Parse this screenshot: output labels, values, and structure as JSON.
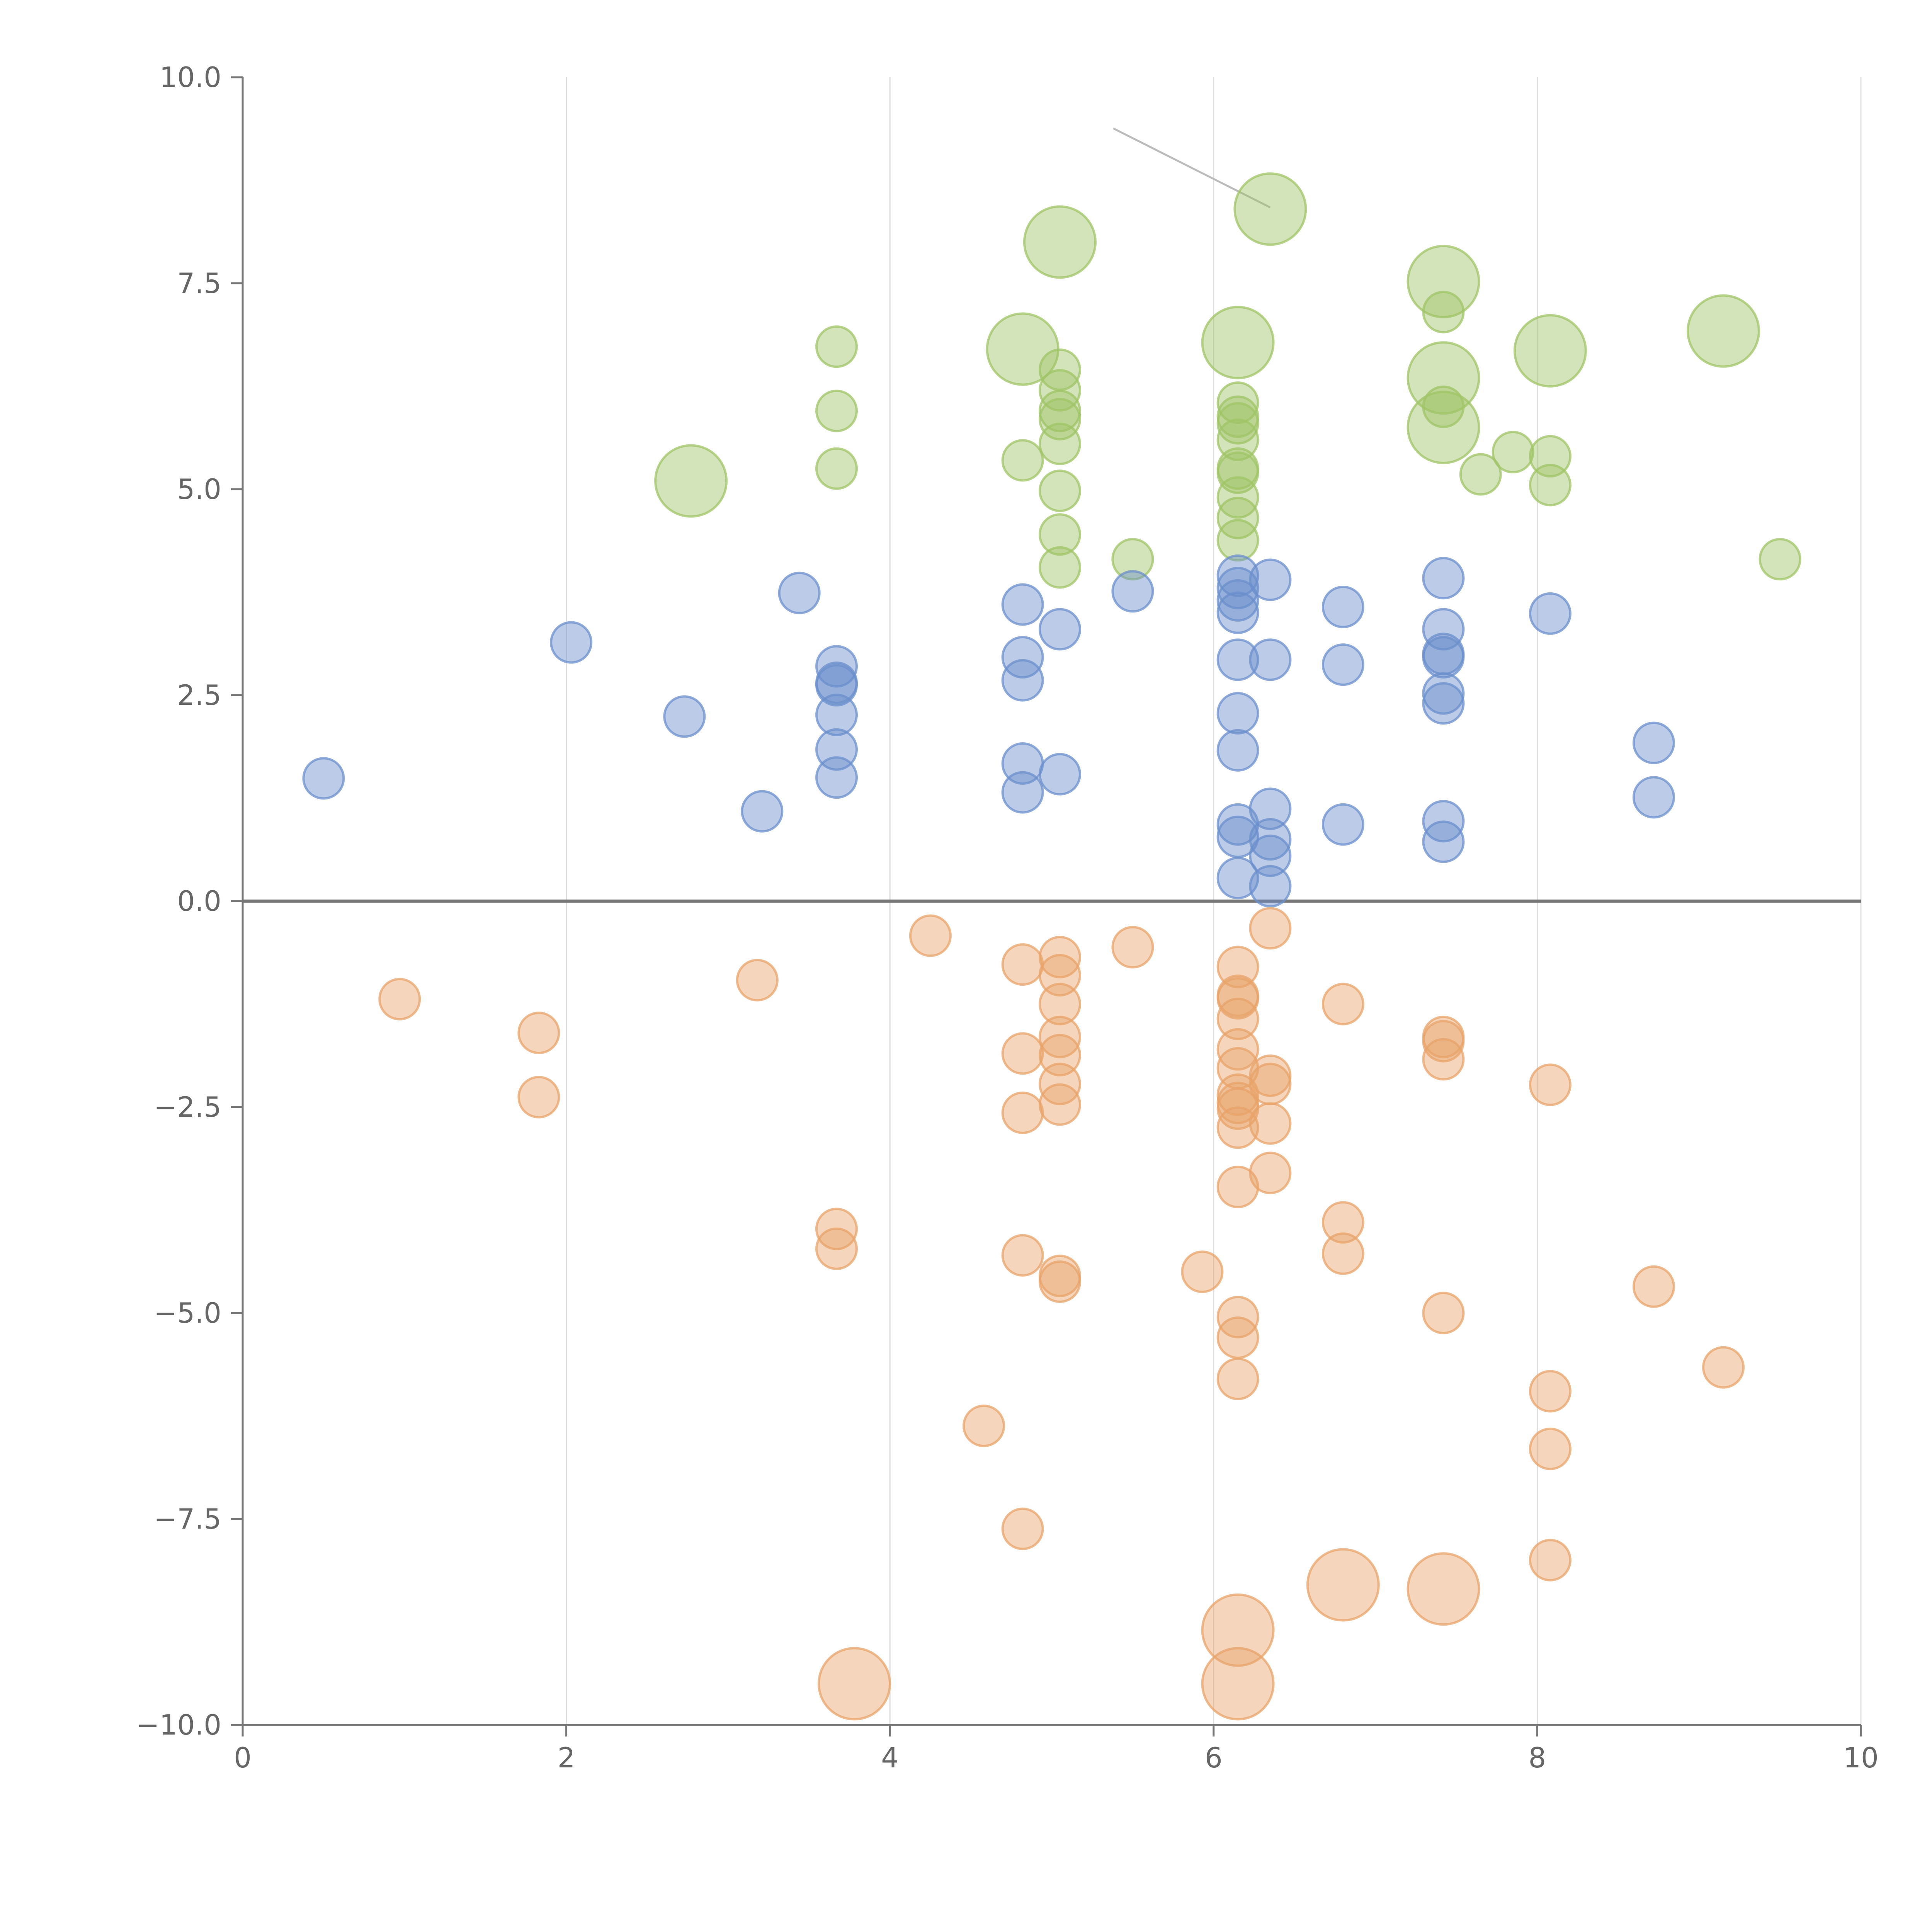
{
  "chart_data": {
    "type": "scatter",
    "title": "",
    "xlabel": "",
    "ylabel": "",
    "xlim": [
      0,
      10
    ],
    "ylim": [
      -10,
      10
    ],
    "x_ticks": [
      "0",
      "2",
      "4",
      "6",
      "8",
      "10"
    ],
    "y_ticks": [
      "10.0",
      "7.5",
      "5.0",
      "2.5",
      "0.0",
      "−2.5",
      "−5.0",
      "−7.5",
      "−10.0"
    ],
    "grid": "vertical",
    "colors": {
      "green": "#9fc466",
      "blue": "#6b8fcc",
      "orange": "#e8a36a",
      "grid": "#dddddd",
      "axis": "#777777",
      "leader": "#bbbbbb"
    },
    "series": [
      {
        "name": "green",
        "points": [
          [
            6.35,
            8.4,
            "large"
          ],
          [
            5.05,
            8.0,
            "large"
          ],
          [
            7.42,
            7.52,
            "large"
          ],
          [
            7.42,
            7.15,
            "small"
          ],
          [
            9.15,
            6.92,
            "large"
          ],
          [
            6.15,
            6.78,
            "large"
          ],
          [
            4.82,
            6.7,
            "large"
          ],
          [
            8.08,
            6.68,
            "large"
          ],
          [
            3.67,
            6.73,
            "small"
          ],
          [
            5.05,
            6.45,
            "small"
          ],
          [
            7.42,
            6.35,
            "large"
          ],
          [
            5.05,
            6.2,
            "small"
          ],
          [
            6.15,
            6.05,
            "small"
          ],
          [
            7.42,
            6.0,
            "small"
          ],
          [
            3.67,
            5.95,
            "small"
          ],
          [
            5.05,
            5.95,
            "small"
          ],
          [
            6.15,
            5.88,
            "small"
          ],
          [
            5.05,
            5.85,
            "small"
          ],
          [
            6.15,
            5.8,
            "small"
          ],
          [
            7.42,
            5.75,
            "large"
          ],
          [
            6.15,
            5.6,
            "small"
          ],
          [
            5.05,
            5.55,
            "small"
          ],
          [
            7.85,
            5.45,
            "small"
          ],
          [
            8.08,
            5.4,
            "small"
          ],
          [
            4.82,
            5.35,
            "small"
          ],
          [
            3.67,
            5.25,
            "small"
          ],
          [
            6.15,
            5.25,
            "small"
          ],
          [
            6.15,
            5.2,
            "small"
          ],
          [
            7.65,
            5.18,
            "small"
          ],
          [
            2.77,
            5.1,
            "large"
          ],
          [
            8.08,
            5.05,
            "small"
          ],
          [
            5.05,
            4.98,
            "small"
          ],
          [
            6.15,
            4.9,
            "small"
          ],
          [
            6.15,
            4.65,
            "small"
          ],
          [
            5.05,
            4.45,
            "small"
          ],
          [
            6.15,
            4.38,
            "small"
          ],
          [
            5.5,
            4.15,
            "small"
          ],
          [
            9.5,
            4.15,
            "small"
          ],
          [
            5.05,
            4.05,
            "small"
          ]
        ]
      },
      {
        "name": "blue",
        "points": [
          [
            6.35,
            3.9,
            "small"
          ],
          [
            7.42,
            3.92,
            "small"
          ],
          [
            6.15,
            3.95,
            "small"
          ],
          [
            6.15,
            3.8,
            "small"
          ],
          [
            5.5,
            3.76,
            "small"
          ],
          [
            3.44,
            3.74,
            "small"
          ],
          [
            6.15,
            3.65,
            "small"
          ],
          [
            4.82,
            3.6,
            "small"
          ],
          [
            6.8,
            3.57,
            "small"
          ],
          [
            6.15,
            3.5,
            "small"
          ],
          [
            8.08,
            3.49,
            "small"
          ],
          [
            5.05,
            3.3,
            "small"
          ],
          [
            7.42,
            3.3,
            "small"
          ],
          [
            2.03,
            3.14,
            "small"
          ],
          [
            7.42,
            3.0,
            "small"
          ],
          [
            7.42,
            2.96,
            "small"
          ],
          [
            4.82,
            2.96,
            "small"
          ],
          [
            6.15,
            2.93,
            "small"
          ],
          [
            6.35,
            2.93,
            "small"
          ],
          [
            6.8,
            2.87,
            "small"
          ],
          [
            3.67,
            2.85,
            "small"
          ],
          [
            4.82,
            2.68,
            "small"
          ],
          [
            3.67,
            2.65,
            "small"
          ],
          [
            3.67,
            2.62,
            "small"
          ],
          [
            7.42,
            2.52,
            "small"
          ],
          [
            7.42,
            2.4,
            "small"
          ],
          [
            6.15,
            2.28,
            "small"
          ],
          [
            3.67,
            2.26,
            "small"
          ],
          [
            2.73,
            2.24,
            "small"
          ],
          [
            8.72,
            1.92,
            "small"
          ],
          [
            3.67,
            1.84,
            "small"
          ],
          [
            6.15,
            1.83,
            "small"
          ],
          [
            4.82,
            1.67,
            "small"
          ],
          [
            5.05,
            1.54,
            "small"
          ],
          [
            3.67,
            1.5,
            "small"
          ],
          [
            0.5,
            1.49,
            "small"
          ],
          [
            8.72,
            1.26,
            "small"
          ],
          [
            4.82,
            1.32,
            "small"
          ],
          [
            6.35,
            1.12,
            "small"
          ],
          [
            3.21,
            1.09,
            "small"
          ],
          [
            7.42,
            0.97,
            "small"
          ],
          [
            6.8,
            0.93,
            "small"
          ],
          [
            6.15,
            0.93,
            "small"
          ],
          [
            6.15,
            0.78,
            "small"
          ],
          [
            6.35,
            0.75,
            "small"
          ],
          [
            7.42,
            0.72,
            "small"
          ],
          [
            6.35,
            0.55,
            "small"
          ],
          [
            6.15,
            0.28,
            "small"
          ],
          [
            6.35,
            0.18,
            "small"
          ]
        ]
      },
      {
        "name": "orange",
        "points": [
          [
            6.35,
            -0.33,
            "small"
          ],
          [
            4.25,
            -0.42,
            "small"
          ],
          [
            5.5,
            -0.56,
            "small"
          ],
          [
            5.05,
            -0.68,
            "small"
          ],
          [
            4.82,
            -0.77,
            "small"
          ],
          [
            6.15,
            -0.8,
            "small"
          ],
          [
            5.05,
            -0.9,
            "small"
          ],
          [
            3.18,
            -0.96,
            "small"
          ],
          [
            6.15,
            -1.15,
            "small"
          ],
          [
            6.15,
            -1.18,
            "small"
          ],
          [
            0.97,
            -1.19,
            "small"
          ],
          [
            5.05,
            -1.25,
            "small"
          ],
          [
            6.8,
            -1.25,
            "small"
          ],
          [
            6.15,
            -1.43,
            "small"
          ],
          [
            1.83,
            -1.6,
            "small"
          ],
          [
            5.05,
            -1.65,
            "small"
          ],
          [
            7.42,
            -1.65,
            "small"
          ],
          [
            7.42,
            -1.7,
            "small"
          ],
          [
            6.15,
            -1.8,
            "small"
          ],
          [
            4.82,
            -1.85,
            "small"
          ],
          [
            5.05,
            -1.87,
            "small"
          ],
          [
            7.42,
            -1.92,
            "small"
          ],
          [
            6.15,
            -2.03,
            "small"
          ],
          [
            6.35,
            -2.12,
            "small"
          ],
          [
            6.35,
            -2.22,
            "small"
          ],
          [
            5.05,
            -2.22,
            "small"
          ],
          [
            8.08,
            -2.23,
            "small"
          ],
          [
            6.15,
            -2.35,
            "small"
          ],
          [
            1.83,
            -2.38,
            "small"
          ],
          [
            6.15,
            -2.45,
            "small"
          ],
          [
            5.05,
            -2.47,
            "small"
          ],
          [
            6.15,
            -2.52,
            "small"
          ],
          [
            4.82,
            -2.57,
            "small"
          ],
          [
            6.35,
            -2.7,
            "small"
          ],
          [
            6.15,
            -2.75,
            "small"
          ],
          [
            6.35,
            -3.3,
            "small"
          ],
          [
            6.15,
            -3.47,
            "small"
          ],
          [
            6.8,
            -3.9,
            "small"
          ],
          [
            3.67,
            -3.98,
            "small"
          ],
          [
            3.67,
            -4.22,
            "small"
          ],
          [
            6.8,
            -4.28,
            "small"
          ],
          [
            4.82,
            -4.3,
            "small"
          ],
          [
            5.93,
            -4.5,
            "small"
          ],
          [
            5.05,
            -4.55,
            "small"
          ],
          [
            5.05,
            -4.62,
            "small"
          ],
          [
            8.72,
            -4.68,
            "small"
          ],
          [
            7.42,
            -5.0,
            "small"
          ],
          [
            6.15,
            -5.05,
            "small"
          ],
          [
            6.15,
            -5.3,
            "small"
          ],
          [
            9.15,
            -5.66,
            "small"
          ],
          [
            6.15,
            -5.8,
            "small"
          ],
          [
            8.08,
            -5.95,
            "small"
          ],
          [
            4.58,
            -6.37,
            "small"
          ],
          [
            8.08,
            -6.65,
            "small"
          ],
          [
            4.82,
            -7.62,
            "small"
          ],
          [
            8.08,
            -8.0,
            "small"
          ],
          [
            6.8,
            -8.3,
            "large"
          ],
          [
            7.42,
            -8.35,
            "large"
          ],
          [
            6.15,
            -8.85,
            "large"
          ],
          [
            3.78,
            -9.5,
            "large"
          ],
          [
            6.15,
            -9.5,
            "large"
          ]
        ]
      }
    ]
  }
}
